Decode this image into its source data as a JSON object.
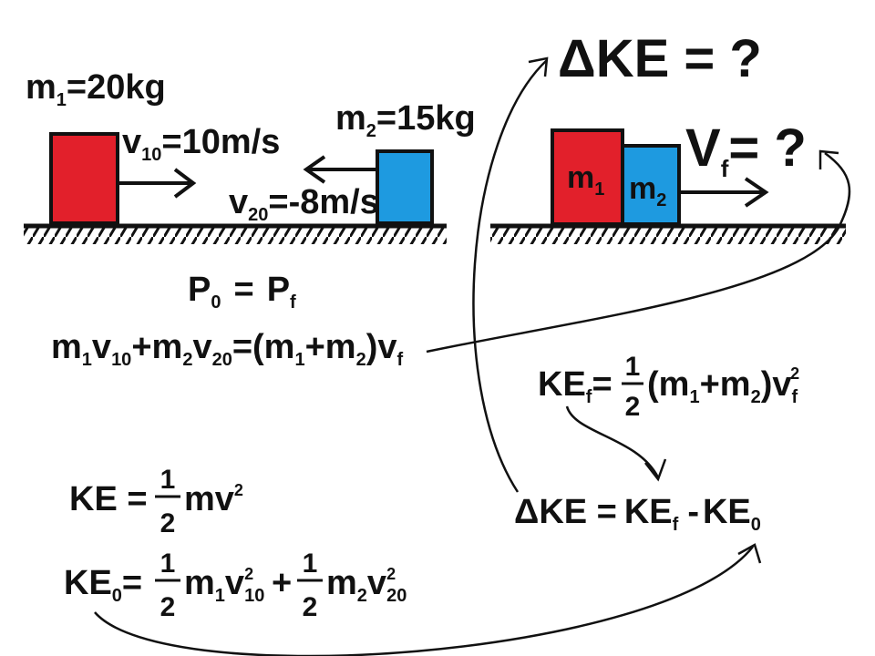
{
  "colors": {
    "block1": "#e2202b",
    "block2": "#1e9ae0",
    "ink": "#111111",
    "background": "#ffffff"
  },
  "left_scene": {
    "m1_label": "m",
    "m1_sub": "1",
    "m1_value": "=20kg",
    "v1_label": "v",
    "v1_sub": "10",
    "v1_value": "=10m/s",
    "m2_label": "m",
    "m2_sub": "2",
    "m2_value": "=15kg",
    "v2_label": "v",
    "v2_sub": "20",
    "v2_value": "=-8m/s"
  },
  "right_scene": {
    "dke_title": "ΔKE = ?",
    "vf_label": "V",
    "vf_sub": "f",
    "vf_eq": "= ?",
    "block1_label": "m",
    "block1_sub": "1",
    "block2_label": "m",
    "block2_sub": "2"
  },
  "equations": {
    "momentum_cons": {
      "p0": "P",
      "p0_sub": "0",
      "eq": "=",
      "pf": "P",
      "pf_sub": "f"
    },
    "momentum_expanded": {
      "m1": "m",
      "m1_sub": "1",
      "v1": "v",
      "v1_sub": "10",
      "plus": "+",
      "m2": "m",
      "m2_sub": "2",
      "v2": "v",
      "v2_sub": "20",
      "rhs": "=(m",
      "rhs_sub1": "1",
      "rhs_mid": "+m",
      "rhs_sub2": "2",
      "rhs_end": ")v",
      "rhs_sub3": "f"
    },
    "ke_final": {
      "lhs": "KE",
      "lhs_sub": "f",
      "eq": "=",
      "num": "1",
      "den": "2",
      "body_a": "(m",
      "sub1": "1",
      "body_b": "+m",
      "sub2": "2",
      "body_c": ")v",
      "sub_f": "f",
      "sup": "2"
    },
    "ke_general": {
      "lhs": "KE =",
      "num": "1",
      "den": "2",
      "body": "mv",
      "sup": "2"
    },
    "ke_initial": {
      "lhs": "KE",
      "lhs_sub": "0",
      "eq": "=",
      "num1": "1",
      "den1": "2",
      "t1_m": "m",
      "t1_msub": "1",
      "t1_v": "v",
      "t1_sup": "2",
      "t1_vsub": "10",
      "plus": "+",
      "num2": "1",
      "den2": "2",
      "t2_m": "m",
      "t2_msub": "2",
      "t2_v": "v",
      "t2_sup": "2",
      "t2_vsub": "20"
    },
    "delta_ke": {
      "lhs": "ΔKE =",
      "ke_f": "KE",
      "ke_f_sub": "f",
      "minus": "-",
      "ke_0": "KE",
      "ke_0_sub": "0"
    }
  }
}
